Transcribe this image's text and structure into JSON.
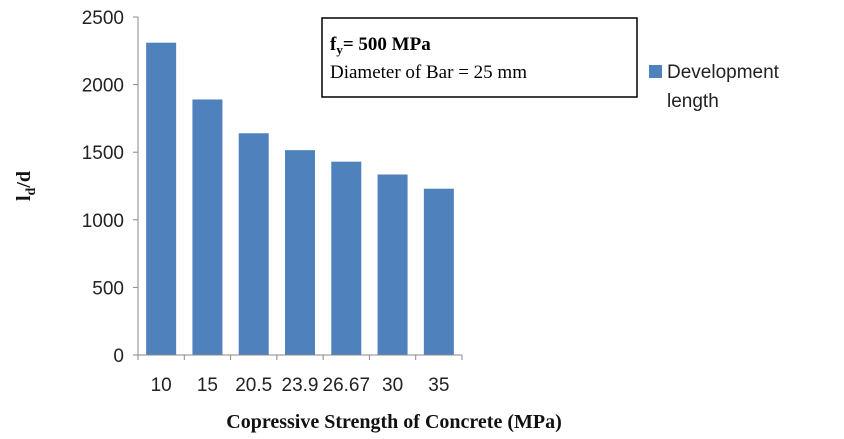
{
  "chart_data": {
    "type": "bar",
    "categories": [
      "10",
      "15",
      "20.5",
      "23.9",
      "26.67",
      "30",
      "35"
    ],
    "series": [
      {
        "name": "Development length",
        "values": [
          2310,
          1890,
          1640,
          1515,
          1430,
          1335,
          1230
        ],
        "color": "#4f81bd"
      }
    ],
    "xlabel": "Copressive Strength  of Concrete (MPa)",
    "ylabel": {
      "main": "l",
      "sub": "d",
      "rest": "/d"
    },
    "ylim": [
      0,
      2500
    ],
    "yticks": [
      "0",
      "500",
      "1000",
      "1500",
      "2000",
      "2500"
    ],
    "grid": false,
    "legend": {
      "placement": "right",
      "entries": [
        "Development",
        "length"
      ]
    },
    "annotation": {
      "line1_main": "f",
      "line1_sub": "y",
      "line1_rest": "= 500 MPa",
      "line2": "Diameter of Bar = 25 mm"
    }
  }
}
